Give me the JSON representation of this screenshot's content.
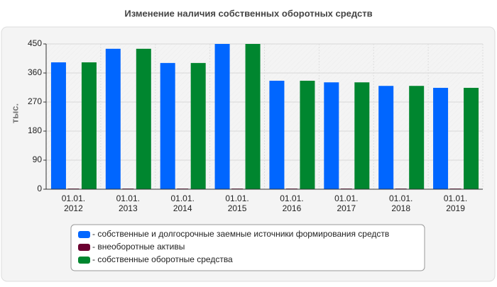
{
  "chart_data": {
    "type": "bar",
    "title": "Изменение наличия собственных оборотных средств",
    "y_label": "тыс.",
    "categories": [
      "01.01. 2012",
      "01.01. 2013",
      "01.01. 2014",
      "01.01. 2015",
      "01.01. 2016",
      "01.01. 2017",
      "01.01. 2018",
      "01.01. 2019"
    ],
    "series": [
      {
        "name": "- собственные и долгосрочные заемные источники формирования средств",
        "color": "#0066ff",
        "values": [
          393,
          435,
          391,
          450,
          336,
          331,
          320,
          314
        ]
      },
      {
        "name": "- внеоборотные активы",
        "color": "#6b0030",
        "values": [
          2,
          2,
          2,
          2,
          2,
          2,
          2,
          2
        ]
      },
      {
        "name": "- собственные оборотные средства",
        "color": "#00862f",
        "values": [
          393,
          435,
          391,
          450,
          336,
          331,
          320,
          314
        ]
      }
    ],
    "ylim": [
      0,
      450
    ],
    "yticks": [
      0,
      90,
      180,
      270,
      360,
      450
    ],
    "grid": true
  }
}
